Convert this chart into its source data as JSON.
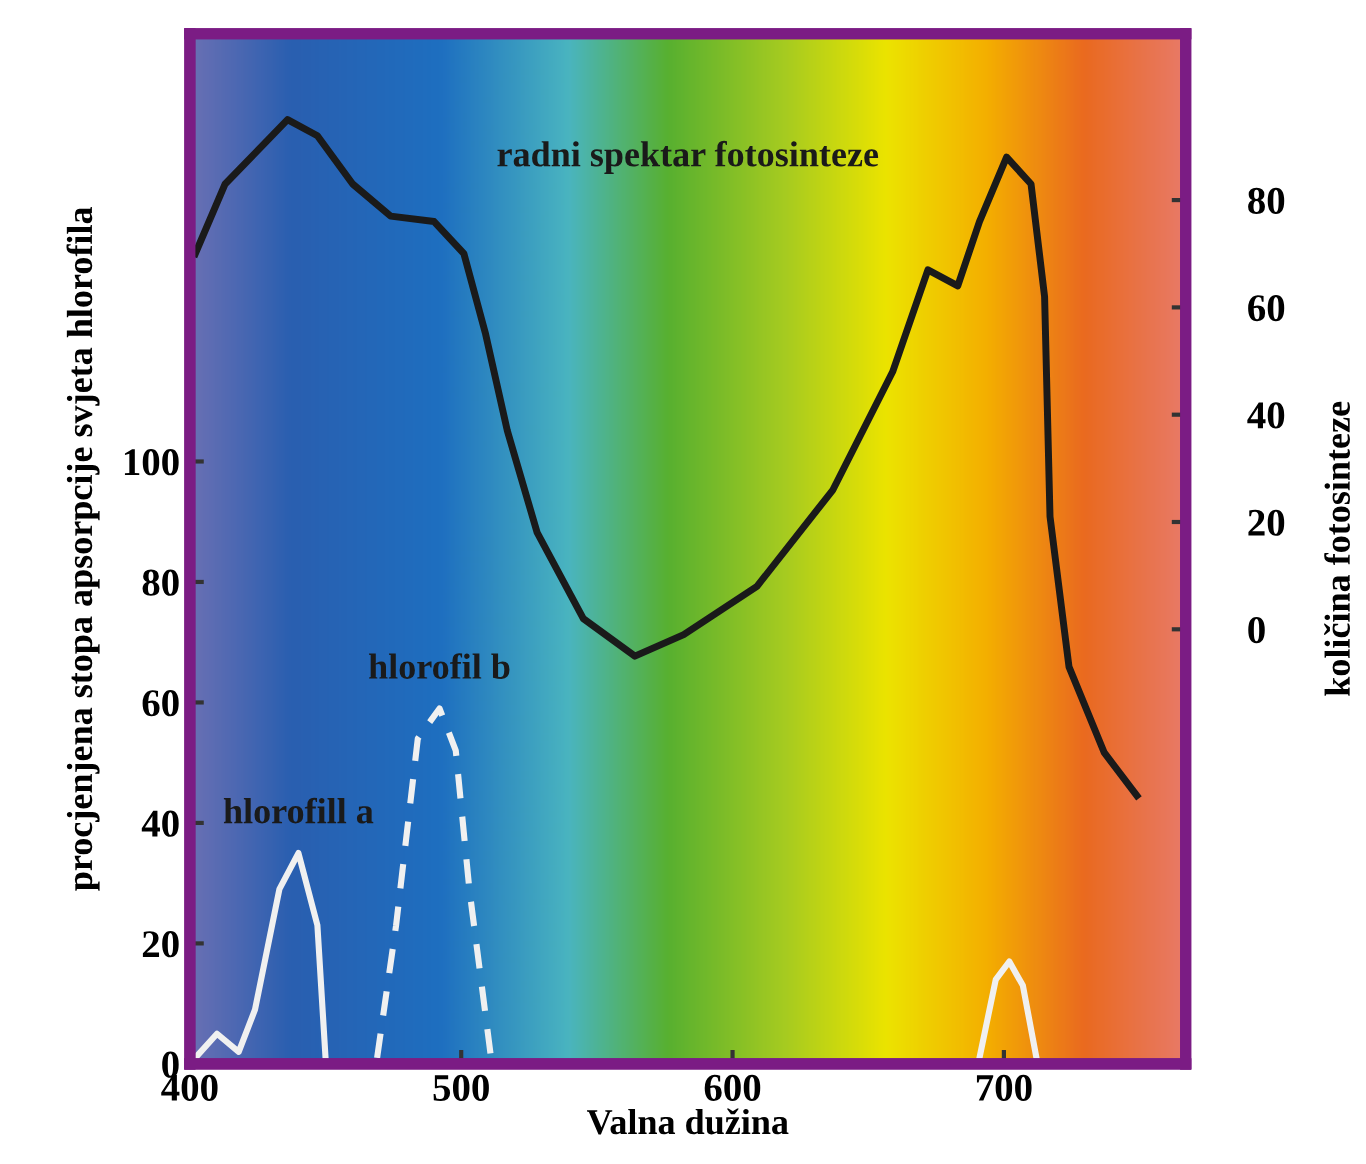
{
  "chart_data": {
    "type": "line",
    "xlabel": "Valna dužina",
    "ylabel": "procjenjena stopa apsorpcije svjeta hlorofila",
    "y2label": "količina fotosinteze",
    "xlim": [
      400,
      767
    ],
    "xticks": [
      400,
      500,
      600,
      700
    ],
    "ylim": [
      0,
      171
    ],
    "yticks": [
      0,
      20,
      40,
      60,
      80,
      100
    ],
    "y2lim": [
      -81,
      111
    ],
    "y2ticks": [
      0,
      20,
      40,
      60,
      80
    ],
    "grid": false,
    "legend": false,
    "marker": "none",
    "series": [
      {
        "name": "radni spektar fotosinteze",
        "color": "#1a1a1a",
        "axis": "y2",
        "line_style": "solid",
        "x": [
          402,
          413,
          436,
          447,
          460,
          474,
          490,
          501,
          509,
          517,
          528,
          545,
          564,
          582,
          609,
          637,
          659,
          672,
          683,
          691,
          701,
          710,
          715,
          717,
          724,
          737,
          749
        ],
        "values": [
          70,
          83,
          95,
          92,
          83,
          77,
          76,
          70,
          55,
          37,
          18,
          2,
          -5,
          -1,
          8,
          26,
          48,
          67,
          64,
          76,
          88,
          83,
          62,
          21,
          -7,
          -23,
          -31
        ]
      },
      {
        "name": "hlorofil b",
        "color": "#f0f0f0",
        "axis": "y",
        "line_style": "dashed",
        "x": [
          469,
          476,
          484,
          492,
          498,
          503,
          511
        ],
        "values": [
          1,
          23,
          54,
          59,
          52,
          29,
          1
        ]
      },
      {
        "name": "hlorofill a",
        "color": "#f0f0f0",
        "axis": "y",
        "line_style": "solid",
        "x": [
          402,
          410,
          418,
          424,
          433,
          440,
          447,
          450,
          570,
          691,
          697,
          702,
          707,
          712
        ],
        "values": [
          1,
          5,
          2,
          9,
          29,
          35,
          23,
          1,
          null,
          1,
          14,
          17,
          13,
          1
        ]
      }
    ]
  }
}
